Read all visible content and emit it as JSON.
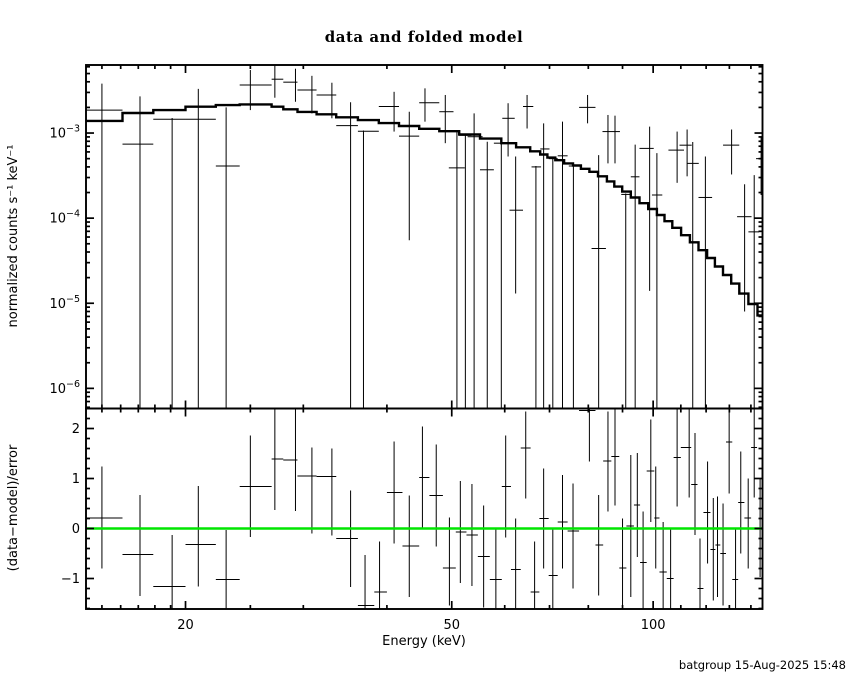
{
  "window": {
    "background": "#ffffff",
    "foreground": "#000000"
  },
  "header": {
    "title": "data and folded model"
  },
  "footer": {
    "timestamp": "batgroup 15-Aug-2025 15:48"
  },
  "chart_data": {
    "type": "line",
    "title": "data and folded model",
    "xlabel": "Energy (keV)",
    "x_scale": "log",
    "x_range": [
      14.2,
      145.7
    ],
    "x_major_ticks": [
      20,
      50,
      100
    ],
    "x_minor_ticks": [
      15,
      16,
      17,
      18,
      19,
      25,
      30,
      40,
      60,
      70,
      80,
      90,
      110,
      120,
      130,
      140
    ],
    "grid": false,
    "legend": "none",
    "colors": {
      "frame": "#000000",
      "model": "#000000",
      "data": "#000000",
      "zero_line": "#00e600"
    },
    "panels": [
      {
        "name": "spectrum",
        "ylabel": "normalized counts s⁻¹ keV⁻¹",
        "y_scale": "log",
        "y_range": [
          5.8e-07,
          0.0063
        ],
        "y_tick_exponents": [
          -3,
          -4,
          -5,
          -6
        ],
        "model_bins": [
          [
            14.2,
            16.1,
            0.00139
          ],
          [
            16.1,
            17.9,
            0.00172
          ],
          [
            17.9,
            20.0,
            0.00186
          ],
          [
            20.0,
            22.2,
            0.00204
          ],
          [
            22.2,
            24.1,
            0.00213
          ],
          [
            24.1,
            26.9,
            0.00217
          ],
          [
            26.9,
            28.0,
            0.00204
          ],
          [
            28.0,
            29.4,
            0.0019
          ],
          [
            29.4,
            31.4,
            0.00177
          ],
          [
            31.4,
            33.6,
            0.00166
          ],
          [
            33.6,
            36.2,
            0.00153
          ],
          [
            36.2,
            38.9,
            0.00142
          ],
          [
            38.9,
            41.7,
            0.00131
          ],
          [
            41.7,
            44.7,
            0.00121
          ],
          [
            44.7,
            47.9,
            0.00112
          ],
          [
            47.9,
            51.3,
            0.00105
          ],
          [
            51.3,
            55.1,
            0.00096
          ],
          [
            55.1,
            59.3,
            0.00086
          ],
          [
            59.3,
            62.4,
            0.00076
          ],
          [
            62.4,
            65.5,
            0.00068
          ],
          [
            65.5,
            67.8,
            0.00061
          ],
          [
            67.8,
            69.5,
            0.00056
          ],
          [
            69.5,
            71.4,
            0.000515
          ],
          [
            71.4,
            73.6,
            0.00048
          ],
          [
            73.6,
            75.9,
            0.00044
          ],
          [
            75.9,
            78.0,
            0.000415
          ],
          [
            78.0,
            80.3,
            0.00038
          ],
          [
            80.3,
            82.7,
            0.00035
          ],
          [
            82.7,
            85.3,
            0.00031
          ],
          [
            85.3,
            87.5,
            0.00027
          ],
          [
            87.5,
            89.9,
            0.000235
          ],
          [
            89.9,
            92.6,
            0.000205
          ],
          [
            92.6,
            95.4,
            0.000175
          ],
          [
            95.4,
            98.3,
            0.00015
          ],
          [
            98.3,
            101.3,
            0.000128
          ],
          [
            101.3,
            104.0,
            0.000109
          ],
          [
            104.0,
            106.8,
            9.2e-05
          ],
          [
            106.8,
            110.1,
            7.7e-05
          ],
          [
            110.1,
            113.5,
            6.3e-05
          ],
          [
            113.5,
            116.9,
            5.2e-05
          ],
          [
            116.9,
            120.4,
            4.2e-05
          ],
          [
            120.4,
            123.7,
            3.4e-05
          ],
          [
            123.7,
            127.2,
            2.7e-05
          ],
          [
            127.2,
            130.8,
            2.15e-05
          ],
          [
            130.8,
            134.5,
            1.7e-05
          ],
          [
            134.5,
            138.8,
            1.3e-05
          ],
          [
            138.8,
            143.2,
            9.8e-06
          ],
          [
            143.2,
            145.7,
            7.2e-06
          ]
        ],
        "data_points": [
          [
            15.0,
            14.2,
            16.1,
            0.00186,
            null,
            0.0038
          ],
          [
            17.1,
            16.1,
            17.9,
            0.00074,
            null,
            0.0027
          ],
          [
            19.1,
            17.9,
            20.0,
            0.00145,
            null,
            0.0015
          ],
          [
            20.9,
            20.0,
            22.2,
            0.00145,
            null,
            0.0033
          ],
          [
            23.0,
            22.2,
            24.1,
            0.00041,
            null,
            0.002
          ],
          [
            25.0,
            24.1,
            26.9,
            0.00367,
            0.00186,
            0.0055
          ],
          [
            27.2,
            26.9,
            28.0,
            0.00429,
            0.0026,
            0.0062
          ],
          [
            29.2,
            28.0,
            29.4,
            0.00396,
            0.00233,
            0.0057
          ],
          [
            30.9,
            29.4,
            31.4,
            0.0032,
            0.0017,
            0.0047
          ],
          [
            33.1,
            31.4,
            33.6,
            0.0028,
            0.00149,
            0.0039
          ],
          [
            35.3,
            33.6,
            36.2,
            0.00122,
            null,
            0.0023
          ],
          [
            36.9,
            36.2,
            38.9,
            0.00105,
            null,
            0.00107
          ],
          [
            41.0,
            38.9,
            41.7,
            0.00205,
            0.00104,
            0.00305
          ],
          [
            43.2,
            41.7,
            44.7,
            0.00092,
            5.5e-05,
            0.00178
          ],
          [
            45.6,
            44.7,
            47.9,
            0.00227,
            0.00136,
            0.00335
          ],
          [
            48.9,
            47.9,
            50.3,
            0.00178,
            0.00076,
            0.0028
          ],
          [
            50.9,
            49.5,
            52.3,
            0.00039,
            null,
            0.00104
          ],
          [
            52.4,
            51.3,
            53.5,
            0.00094,
            null,
            0.00096
          ],
          [
            54.0,
            52.8,
            55.6,
            0.000905,
            null,
            0.0017
          ],
          [
            56.5,
            55.1,
            57.8,
            0.00037,
            null,
            0.00079
          ],
          [
            59.3,
            57.8,
            60.7,
            0.00076,
            null,
            0.00078
          ],
          [
            60.7,
            59.5,
            62.1,
            0.00149,
            0.00053,
            0.00224
          ],
          [
            62.3,
            61.0,
            63.9,
            0.000124,
            1.3e-05,
            0.00053
          ],
          [
            64.8,
            63.9,
            66.2,
            0.00205,
            0.00113,
            0.0028
          ],
          [
            66.8,
            65.8,
            68.0,
            0.0004,
            null,
            0.00041
          ],
          [
            68.6,
            67.8,
            70.0,
            0.00065,
            null,
            0.0013
          ],
          [
            70.8,
            69.8,
            72.0,
            0.0005,
            null,
            0.00051
          ],
          [
            73.2,
            72.0,
            74.5,
            0.00054,
            null,
            0.00136
          ],
          [
            76.0,
            74.8,
            77.3,
            0.00041,
            null,
            0.00042
          ],
          [
            79.8,
            77.5,
            82.0,
            0.002,
            0.0013,
            0.0028
          ],
          [
            82.9,
            80.9,
            85.0,
            4.4e-05,
            null,
            0.00055
          ],
          [
            85.6,
            84.0,
            86.8,
            0.00104,
            0.00044,
            0.00163
          ],
          [
            87.7,
            86.8,
            89.2,
            0.00104,
            0.00044,
            0.0016
          ],
          [
            91.0,
            89.6,
            92.4,
            0.00019,
            null,
            0.000195
          ],
          [
            94.0,
            92.6,
            95.4,
            0.000306,
            null,
            0.00073
          ],
          [
            98.8,
            95.4,
            100.2,
            0.00066,
            1.4e-05,
            0.00119
          ],
          [
            101.3,
            99.6,
            103.2,
            0.000187,
            null,
            0.00058
          ],
          [
            108.6,
            105.4,
            111.2,
            0.00063,
            0.00026,
            0.00104
          ],
          [
            112.4,
            109.5,
            114.2,
            0.00072,
            0.00031,
            0.0011
          ],
          [
            114.6,
            112.5,
            117.0,
            0.00044,
            null,
            0.000785
          ],
          [
            119.7,
            116.9,
            122.5,
            0.000175,
            null,
            0.00053
          ],
          [
            131.0,
            127.2,
            134.5,
            0.00072,
            0.000326,
            0.0011
          ],
          [
            137.0,
            133.5,
            140.3,
            0.000104,
            8e-06,
            0.00025
          ],
          [
            141.6,
            138.8,
            144.0,
            6.9e-05,
            null,
            0.00032
          ],
          [
            145.0,
            142.5,
            145.7,
            0.0005,
            0.000187,
            0.00091
          ]
        ]
      },
      {
        "name": "residuals",
        "ylabel": "(data−model)/error",
        "y_scale": "linear",
        "y_range": [
          -1.61,
          2.4
        ],
        "y_major_ticks": [
          -1,
          0,
          1,
          2
        ],
        "y_minor_step": 0.2,
        "zero_line": 0,
        "points": [
          [
            15.0,
            14.2,
            16.1,
            0.21,
            -0.8,
            1.24
          ],
          [
            17.1,
            16.1,
            17.9,
            -0.52,
            -1.35,
            0.67
          ],
          [
            19.1,
            17.9,
            20.0,
            -1.16,
            null,
            -0.13
          ],
          [
            20.9,
            20.0,
            22.2,
            -0.32,
            -1.16,
            0.85
          ],
          [
            23.0,
            22.2,
            24.1,
            -1.02,
            null,
            -0.03
          ],
          [
            25.0,
            24.1,
            26.9,
            0.84,
            -0.17,
            1.86
          ],
          [
            27.2,
            26.9,
            28.0,
            1.39,
            0.37,
            null
          ],
          [
            29.2,
            28.0,
            29.4,
            1.37,
            0.35,
            null
          ],
          [
            30.9,
            29.4,
            31.4,
            1.05,
            -0.1,
            1.62
          ],
          [
            33.1,
            31.4,
            33.6,
            1.04,
            -0.14,
            1.6
          ],
          [
            35.3,
            33.6,
            36.2,
            -0.2,
            -1.17,
            0.76
          ],
          [
            37.1,
            36.2,
            38.3,
            -1.54,
            null,
            -0.53
          ],
          [
            39.0,
            38.3,
            40.0,
            -1.27,
            null,
            -0.26
          ],
          [
            41.0,
            40.0,
            42.2,
            0.72,
            -0.3,
            1.74
          ],
          [
            43.2,
            42.2,
            44.7,
            -0.35,
            -1.37,
            0.66
          ],
          [
            45.2,
            44.7,
            46.3,
            1.02,
            0.0,
            2.04
          ],
          [
            47.4,
            46.3,
            48.5,
            0.66,
            -0.36,
            1.68
          ],
          [
            49.6,
            48.5,
            50.7,
            -0.79,
            -1.54,
            0.22
          ],
          [
            51.5,
            50.7,
            52.6,
            -0.07,
            -1.09,
            0.95
          ],
          [
            53.6,
            52.6,
            54.7,
            -0.13,
            -1.15,
            0.89
          ],
          [
            55.8,
            54.7,
            57.0,
            -0.56,
            -1.58,
            0.46
          ],
          [
            58.2,
            57.0,
            59.4,
            -1.02,
            null,
            0.0
          ],
          [
            60.2,
            59.4,
            61.3,
            0.84,
            -0.18,
            1.86
          ],
          [
            62.3,
            61.3,
            63.4,
            -0.82,
            null,
            0.2
          ],
          [
            64.5,
            63.4,
            65.6,
            1.61,
            0.6,
            2.34
          ],
          [
            66.5,
            65.6,
            67.6,
            -1.27,
            null,
            -0.26
          ],
          [
            68.6,
            67.6,
            69.8,
            0.2,
            -0.8,
            1.2
          ],
          [
            70.8,
            69.8,
            72.0,
            -0.94,
            null,
            0.0
          ],
          [
            73.2,
            72.0,
            74.5,
            0.13,
            -0.8,
            1.07
          ],
          [
            75.9,
            74.5,
            77.5,
            -0.05,
            -1.2,
            0.9
          ],
          [
            80.3,
            77.5,
            82.0,
            2.36,
            1.34,
            null
          ],
          [
            82.9,
            82.0,
            84.2,
            -0.33,
            -1.34,
            0.67
          ],
          [
            85.6,
            84.2,
            86.6,
            1.35,
            0.34,
            2.34
          ],
          [
            87.7,
            86.6,
            89.0,
            1.44,
            0.46,
            null
          ],
          [
            90.0,
            89.0,
            91.2,
            -0.79,
            null,
            0.2
          ],
          [
            92.6,
            91.2,
            93.6,
            0.05,
            -1.37,
            1.47
          ],
          [
            94.7,
            93.6,
            95.6,
            0.47,
            -0.57,
            1.51
          ],
          [
            96.6,
            95.6,
            97.8,
            -0.68,
            null,
            0.34
          ],
          [
            99.2,
            97.8,
            100.4,
            1.15,
            0.13,
            2.18
          ],
          [
            100.9,
            100.4,
            102.2,
            0.21,
            -0.8,
            1.24
          ],
          [
            103.5,
            102.2,
            104.8,
            -0.87,
            null,
            0.13
          ],
          [
            106.2,
            104.8,
            107.3,
            -1.0,
            null,
            0.0
          ],
          [
            108.6,
            107.3,
            110.0,
            1.42,
            0.44,
            null
          ],
          [
            113.2,
            110.0,
            114.0,
            1.62,
            0.62,
            null
          ],
          [
            115.5,
            114.0,
            116.5,
            0.88,
            -0.13,
            1.91
          ],
          [
            117.5,
            116.5,
            118.9,
            -1.2,
            null,
            -0.2
          ],
          [
            120.6,
            118.9,
            121.8,
            0.32,
            -0.7,
            1.34
          ],
          [
            123.0,
            121.8,
            123.9,
            -0.42,
            -1.44,
            0.61
          ],
          [
            124.8,
            123.9,
            126.0,
            -0.33,
            -1.37,
            0.64
          ],
          [
            127.2,
            126.0,
            128.5,
            -0.5,
            -1.54,
            0.5
          ],
          [
            129.9,
            128.5,
            131.3,
            1.73,
            0.7,
            null
          ],
          [
            132.8,
            131.3,
            134.0,
            -1.02,
            null,
            0.0
          ],
          [
            135.2,
            134.0,
            136.9,
            0.52,
            -0.5,
            1.54
          ],
          [
            138.7,
            136.9,
            140.1,
            0.21,
            -0.8,
            1.0
          ],
          [
            141.6,
            140.1,
            143.0,
            1.62,
            0.62,
            null
          ],
          [
            144.5,
            143.0,
            145.7,
            0.0,
            -0.97,
            1.0
          ]
        ]
      }
    ]
  }
}
